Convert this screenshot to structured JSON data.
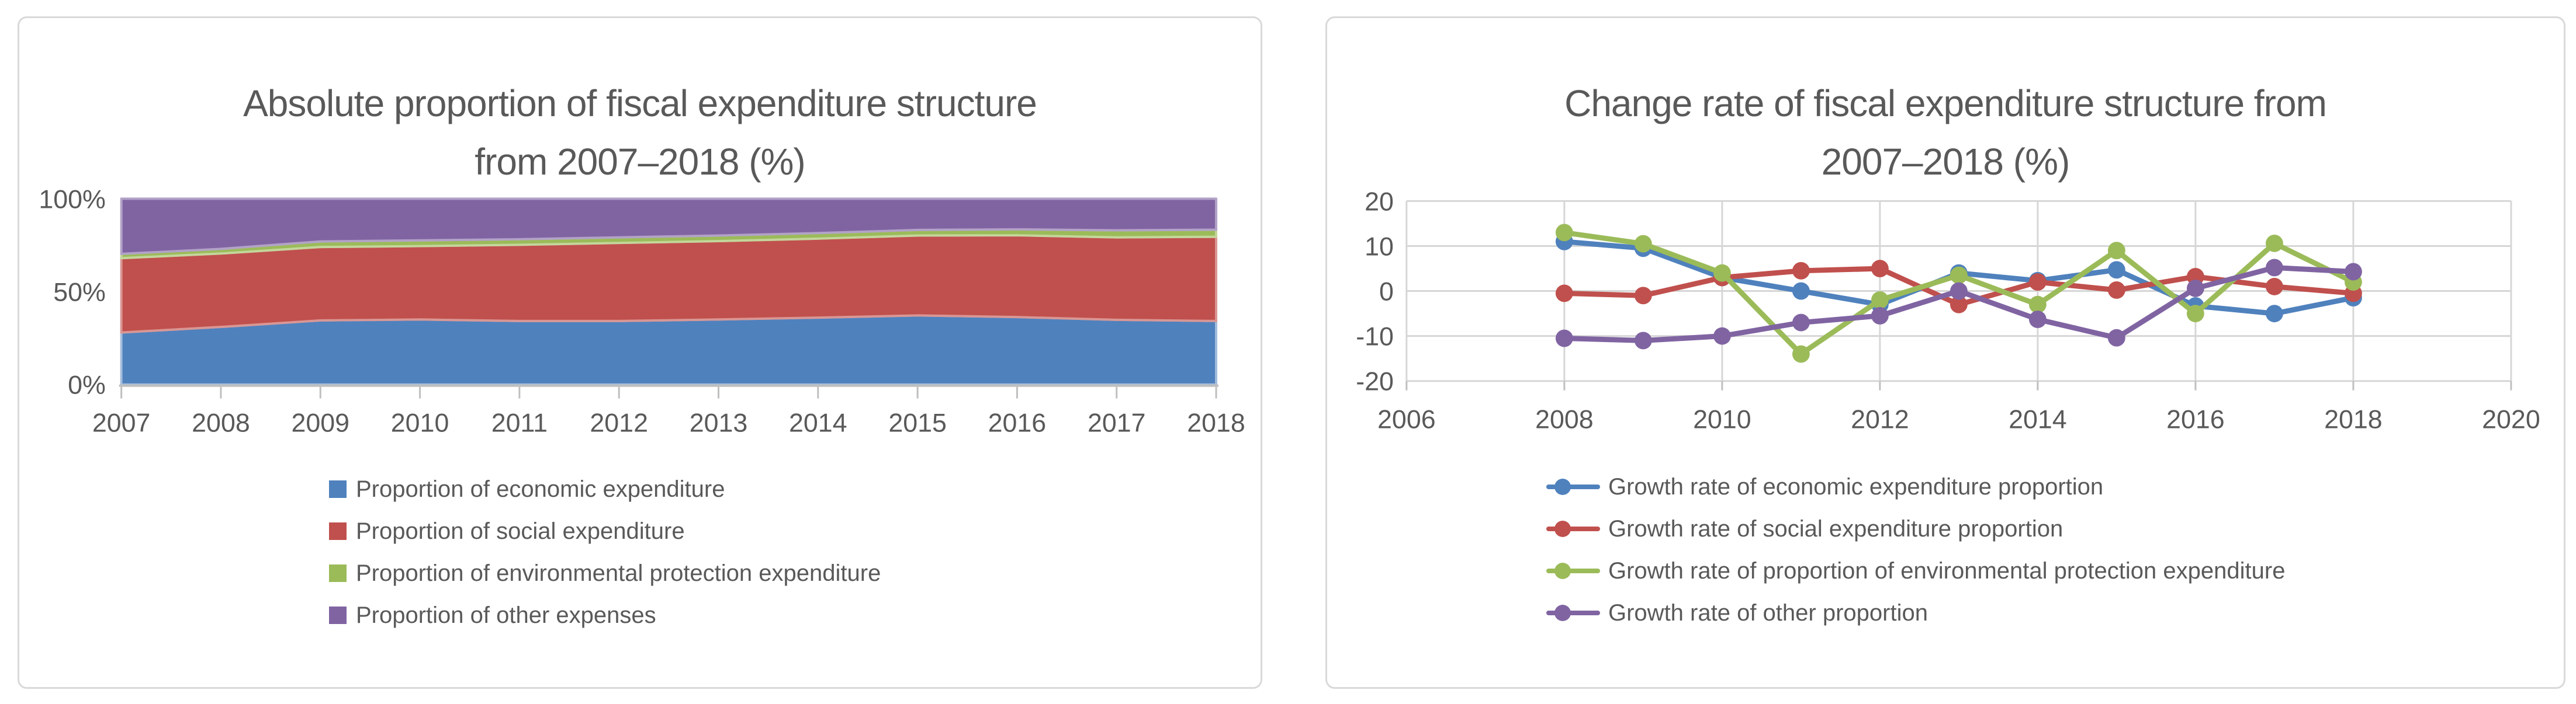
{
  "palette": {
    "economic": "#4F81BD",
    "social": "#C0504D",
    "environmental": "#9BBB59",
    "other": "#8064A2",
    "economic_edge": "#A3BCDC",
    "social_edge": "#D99694",
    "environmental_edge": "#C3D69B",
    "other_edge": "#B2A2C7",
    "text": "#595959",
    "gridline": "#D6D6D6",
    "axis": "#BFBFBF",
    "panel_border": "#D9D9D9"
  },
  "chart_data": [
    {
      "type": "area",
      "stacked": true,
      "title": "Absolute proportion of fiscal expenditure structure from 2007–2018 (%)",
      "title_lines": [
        "Absolute proportion of fiscal expenditure structure",
        "from 2007–2018 (%)"
      ],
      "xlabel": "",
      "ylabel": "",
      "ylim": [
        0,
        100
      ],
      "y_tick_labels": [
        "100%",
        "50%",
        "0%"
      ],
      "y_tick_values": [
        100,
        50,
        0
      ],
      "grid": false,
      "legend_position": "bottom",
      "categories": [
        2007,
        2008,
        2009,
        2010,
        2011,
        2012,
        2013,
        2014,
        2015,
        2016,
        2017,
        2018
      ],
      "series": [
        {
          "key": "economic",
          "name": "Proportion of economic expenditure",
          "values": [
            28.0,
            31.0,
            34.5,
            35.0,
            34.2,
            34.2,
            35.0,
            36.0,
            37.2,
            36.3,
            34.8,
            34.2
          ]
        },
        {
          "key": "social",
          "name": "Proportion of social expenditure",
          "values": [
            40.0,
            39.5,
            39.5,
            39.5,
            41.0,
            42.0,
            42.2,
            42.5,
            43.0,
            44.0,
            44.4,
            45.3
          ]
        },
        {
          "key": "environmental",
          "name": "Proportion of environmental protection expenditure",
          "values": [
            2.3,
            2.5,
            3.0,
            3.1,
            3.0,
            3.0,
            3.0,
            3.0,
            3.0,
            3.2,
            3.8,
            3.8
          ]
        },
        {
          "key": "other",
          "name": "Proportion of other expenses",
          "values": [
            29.7,
            27.0,
            23.0,
            22.4,
            21.8,
            20.8,
            19.8,
            18.5,
            16.8,
            16.5,
            17.0,
            16.7
          ]
        }
      ]
    },
    {
      "type": "line",
      "title": "Change rate of fiscal expenditure structure from 2007–2018 (%)",
      "title_lines": [
        "Change rate of fiscal expenditure structure from",
        "2007–2018 (%)"
      ],
      "xlabel": "",
      "ylabel": "",
      "ylim": [
        -20,
        20
      ],
      "xlim": [
        2006,
        2020
      ],
      "y_tick_labels": [
        "20",
        "10",
        "0",
        "-10",
        "-20"
      ],
      "y_tick_values": [
        20,
        10,
        0,
        -10,
        -20
      ],
      "x_tick_labels": [
        "2006",
        "2008",
        "2010",
        "2012",
        "2014",
        "2016",
        "2018",
        "2020"
      ],
      "x_tick_values": [
        2006,
        2008,
        2010,
        2012,
        2014,
        2016,
        2018,
        2020
      ],
      "grid": true,
      "legend_position": "bottom",
      "x": [
        2008,
        2009,
        2010,
        2011,
        2012,
        2013,
        2014,
        2015,
        2016,
        2017,
        2018
      ],
      "series": [
        {
          "key": "economic",
          "name": "Growth rate of economic expenditure proportion",
          "values": [
            11.0,
            9.5,
            3.0,
            0.0,
            -3.0,
            4.0,
            2.3,
            4.7,
            -3.3,
            -5.0,
            -1.5
          ]
        },
        {
          "key": "social",
          "name": "Growth rate of social expenditure proportion",
          "values": [
            -0.5,
            -1.0,
            3.0,
            4.5,
            5.0,
            -3.0,
            2.0,
            0.2,
            3.2,
            1.0,
            -0.5
          ]
        },
        {
          "key": "environmental",
          "name": "Growth rate of proportion of environmental protection expenditure",
          "values": [
            13.0,
            10.5,
            4.0,
            -14.0,
            -2.0,
            3.5,
            -3.0,
            9.0,
            -5.0,
            10.6,
            2.0
          ]
        },
        {
          "key": "other",
          "name": "Growth rate of other proportion",
          "values": [
            -10.5,
            -11.0,
            -10.0,
            -7.0,
            -5.5,
            0.0,
            -6.3,
            -10.4,
            0.6,
            5.2,
            4.3
          ]
        }
      ]
    }
  ]
}
